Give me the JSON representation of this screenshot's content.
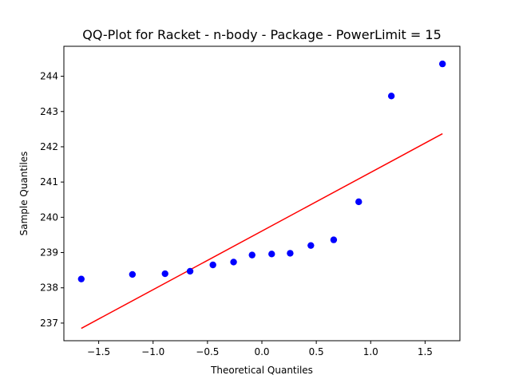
{
  "chart_data": {
    "type": "scatter",
    "title": "QQ-Plot for Racket - n-body - Package - PowerLimit = 15",
    "xlabel": "Theoretical Quantiles",
    "ylabel": "Sample Quantiles",
    "xlim": [
      -1.82,
      1.82
    ],
    "ylim": [
      236.5,
      244.85
    ],
    "xticks": [
      -1.5,
      -1.0,
      -0.5,
      0.0,
      0.5,
      1.0,
      1.5
    ],
    "xtick_labels": [
      "−1.5",
      "−1.0",
      "−0.5",
      "0.0",
      "0.5",
      "1.0",
      "1.5"
    ],
    "yticks": [
      237,
      238,
      239,
      240,
      241,
      242,
      243,
      244
    ],
    "ytick_labels": [
      "237",
      "238",
      "239",
      "240",
      "241",
      "242",
      "243",
      "244"
    ],
    "grid": false,
    "legend": "none",
    "colors": {
      "points": "#0000ff",
      "line": "#ff0000"
    },
    "series": [
      {
        "type": "scatter",
        "x": [
          -1.66,
          -1.19,
          -0.89,
          -0.66,
          -0.45,
          -0.26,
          -0.09,
          0.09,
          0.26,
          0.45,
          0.66,
          0.89,
          1.19,
          1.66
        ],
        "y": [
          238.25,
          238.38,
          238.4,
          238.47,
          238.65,
          238.73,
          238.93,
          238.96,
          238.98,
          239.2,
          239.36,
          240.44,
          243.44,
          244.35
        ]
      },
      {
        "type": "line",
        "x": [
          -1.66,
          1.66
        ],
        "y": [
          236.85,
          242.37
        ]
      }
    ]
  }
}
